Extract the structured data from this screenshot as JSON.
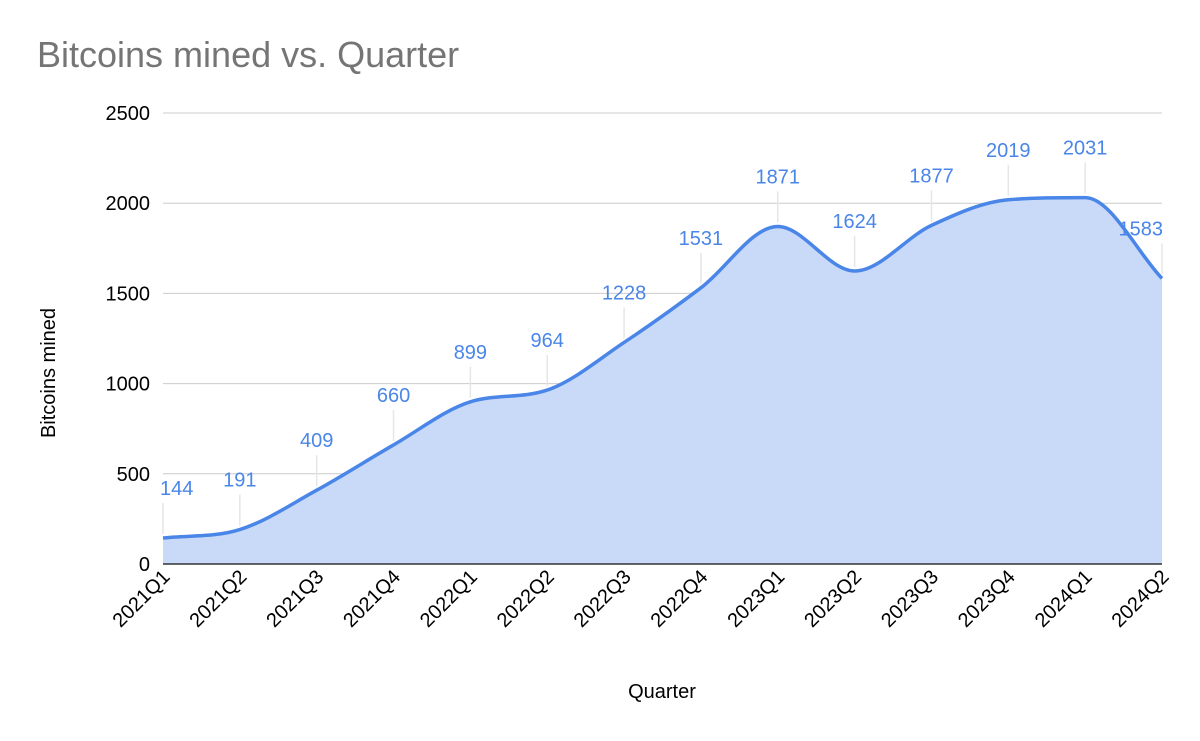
{
  "chart_data": {
    "type": "area",
    "title": "Bitcoins mined vs. Quarter",
    "xlabel": "Quarter",
    "ylabel": "Bitcoins mined",
    "categories": [
      "2021Q1",
      "2021Q2",
      "2021Q3",
      "2021Q4",
      "2022Q1",
      "2022Q2",
      "2022Q3",
      "2022Q4",
      "2023Q1",
      "2023Q2",
      "2023Q3",
      "2023Q4",
      "2024Q1",
      "2024Q2"
    ],
    "series": [
      {
        "values": [
          144,
          191,
          409,
          660,
          899,
          964,
          1228,
          1531,
          1871,
          1624,
          1877,
          2019,
          2031,
          1583
        ]
      }
    ],
    "ylim": [
      0,
      2500
    ],
    "yticks": [
      "0",
      "500",
      "1000",
      "1500",
      "2000",
      "2500"
    ],
    "grid": true,
    "data_labels": true,
    "smooth": true,
    "line_color": "#4a86e8",
    "fill_color": "#c9daf8",
    "title_color": "#757575"
  }
}
